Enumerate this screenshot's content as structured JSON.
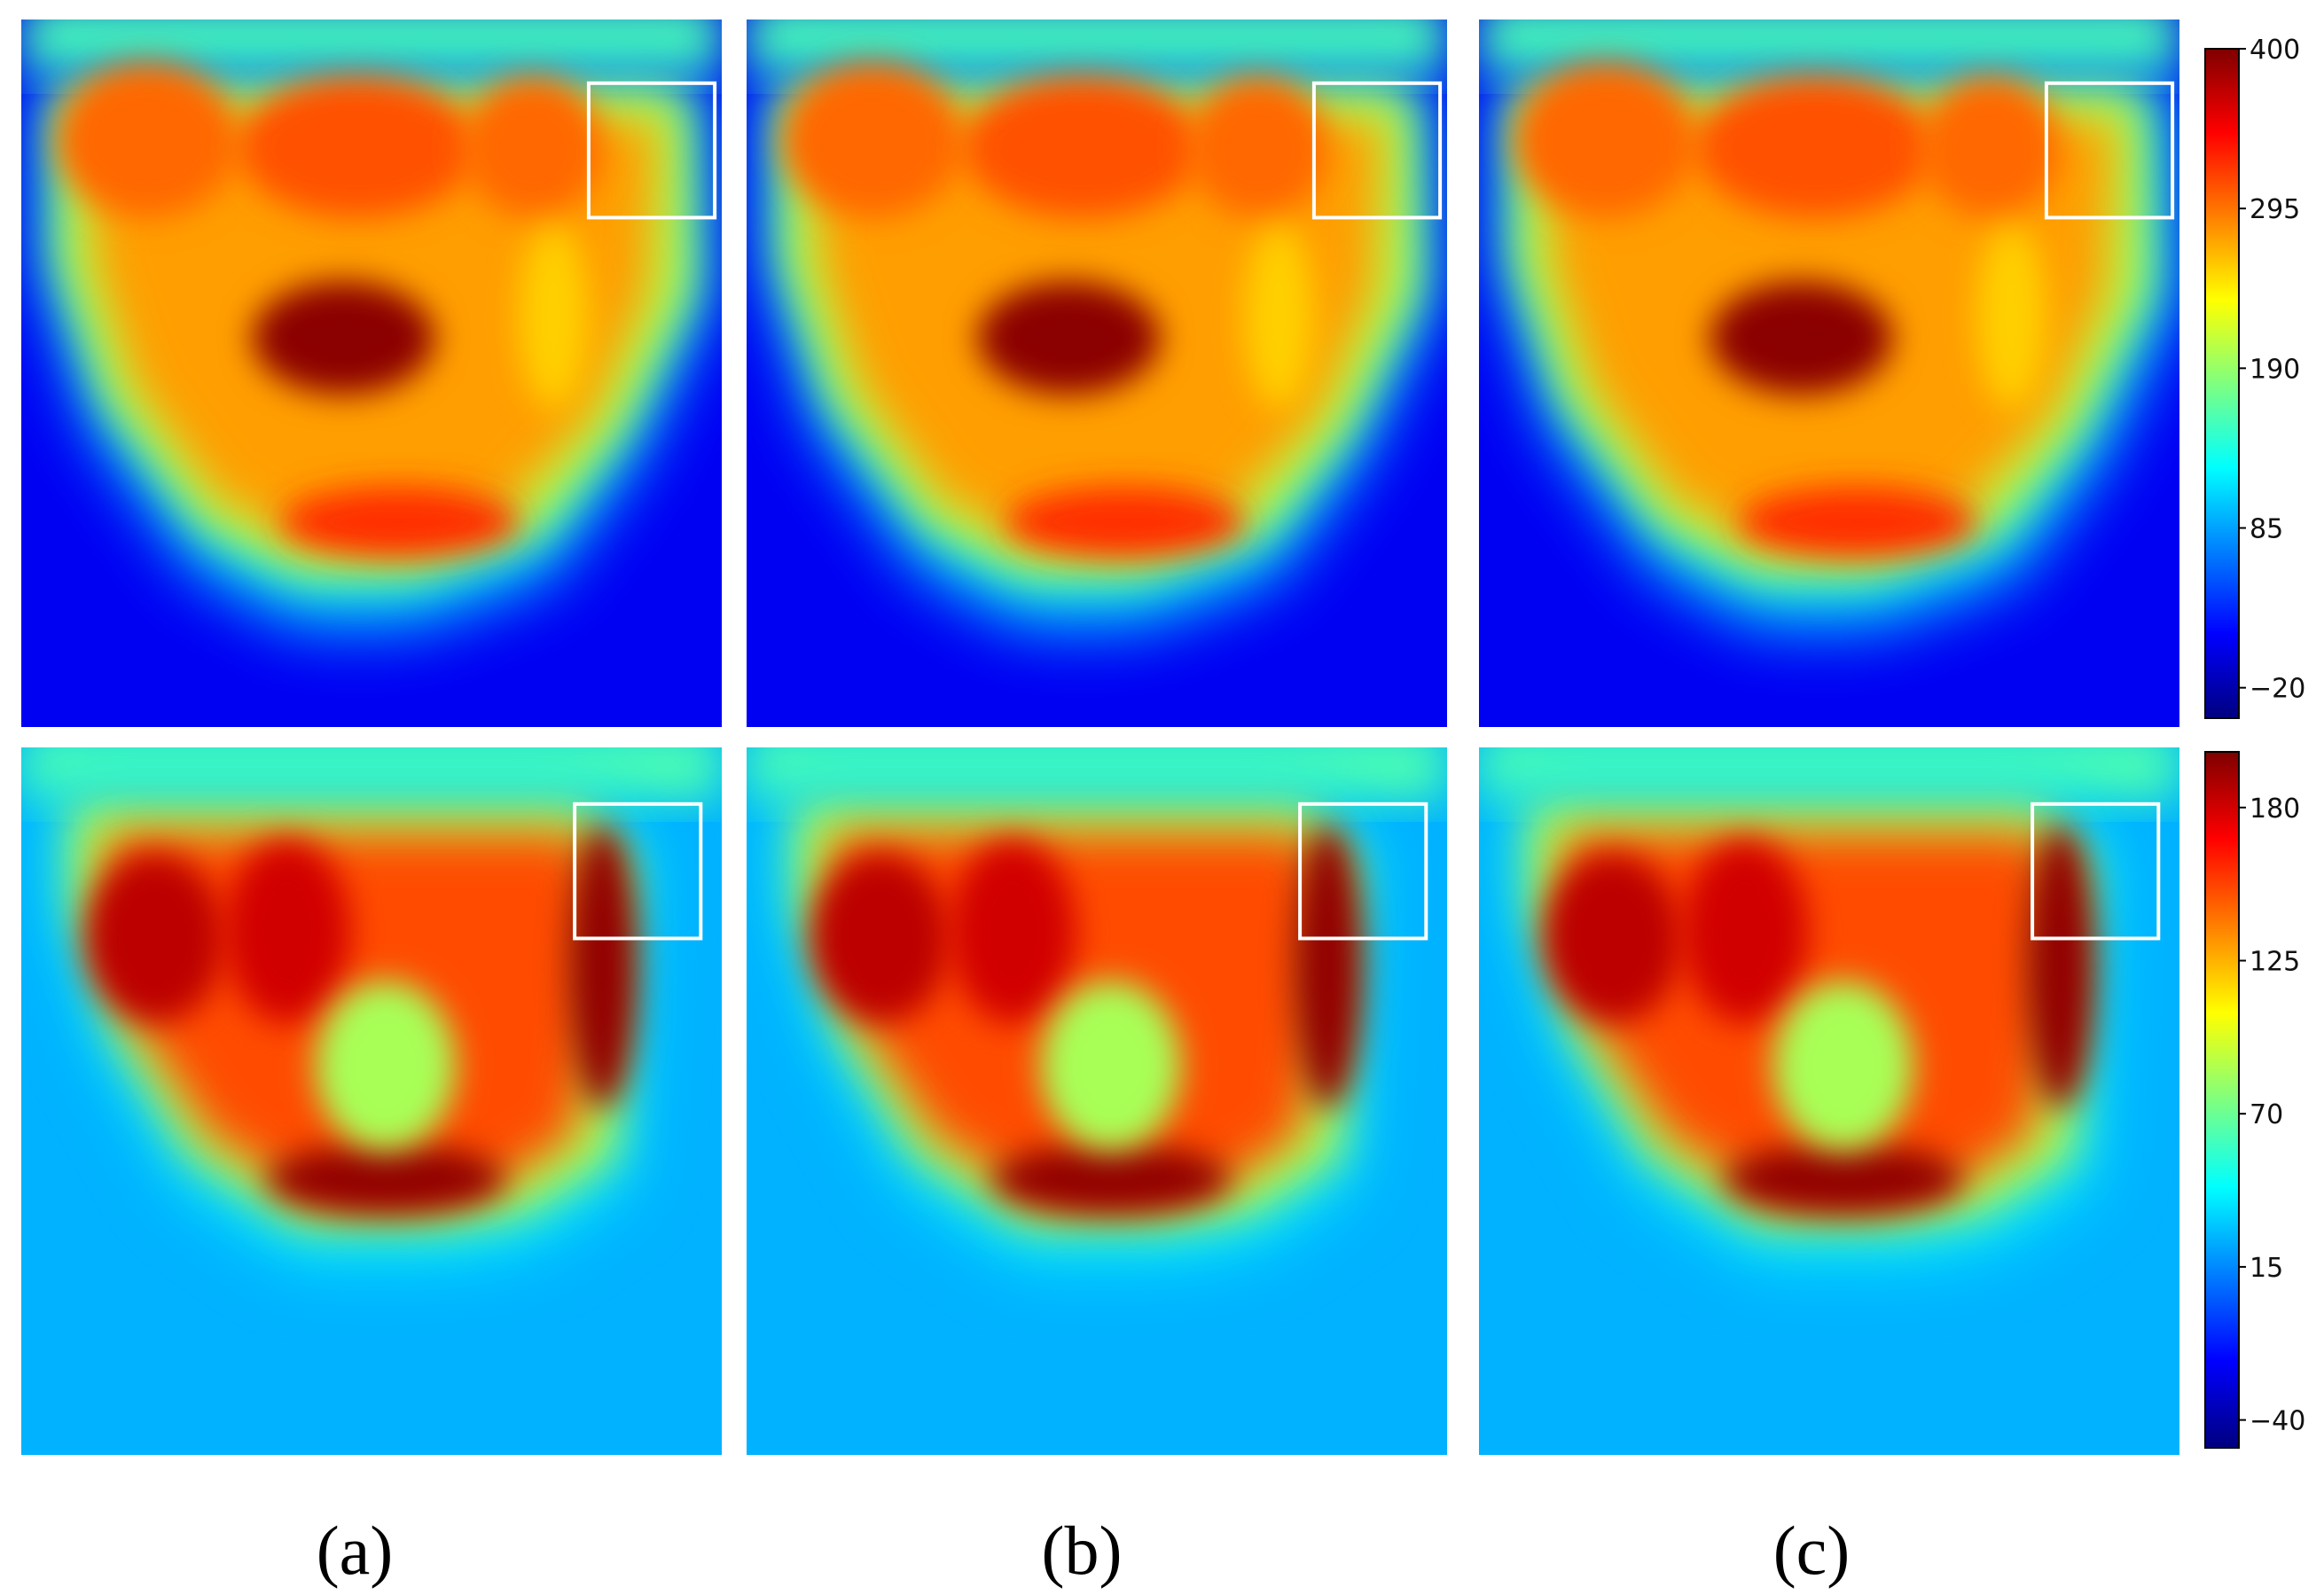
{
  "colormap": [
    "#00007f",
    "#0000ff",
    "#007fff",
    "#00ffff",
    "#7fff7f",
    "#ffff00",
    "#ff7f00",
    "#ff0000",
    "#7f0000"
  ],
  "box_color": "#ffffff",
  "panel_labels": [
    "(a)",
    "(b)",
    "(c)"
  ],
  "chart_data": [
    {
      "type": "heatmap",
      "row": 1,
      "panels": [
        "(a)",
        "(b)",
        "(c)"
      ],
      "colorbar": {
        "min": -40,
        "max": 400,
        "ticks": [
          400,
          295,
          190,
          85,
          -20
        ]
      },
      "hotspots": [
        {
          "name": "center",
          "value": 395
        },
        {
          "name": "upper-left",
          "value": 300
        },
        {
          "name": "upper-middle",
          "value": 310
        },
        {
          "name": "upper-right",
          "value": 300
        },
        {
          "name": "lower-middle",
          "value": 325
        },
        {
          "name": "right-side",
          "value": 255
        }
      ],
      "background_value": 10
    },
    {
      "type": "heatmap",
      "row": 2,
      "panels": [
        "(a)",
        "(b)",
        "(c)"
      ],
      "colorbar": {
        "min": -50,
        "max": 200,
        "ticks": [
          180,
          125,
          70,
          15,
          -40
        ]
      },
      "hotspots": [
        {
          "name": "upper-left",
          "value": 185
        },
        {
          "name": "upper-middle",
          "value": 180
        },
        {
          "name": "upper-right-box",
          "value": 195
        },
        {
          "name": "lower-middle",
          "value": 195
        },
        {
          "name": "center-cool",
          "value": 85
        }
      ],
      "background_value": 25
    }
  ]
}
